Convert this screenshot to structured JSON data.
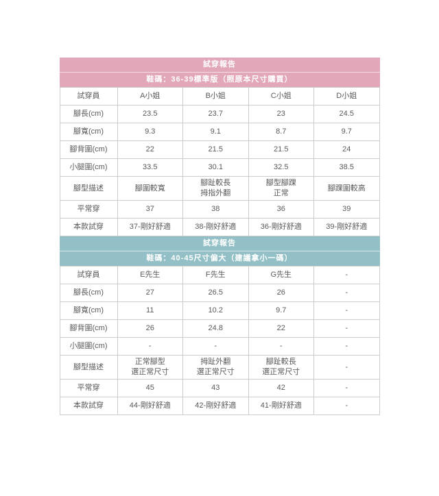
{
  "page": {
    "background": "#ffffff",
    "border_color": "#cccccc",
    "body_text_color": "#595959"
  },
  "chart_data": [
    {
      "type": "table",
      "title": "試穿報告",
      "subtitle": "鞋碼：36-39標準版（照原本尺寸購買）",
      "theme_color": "#e2a7b8",
      "header_text_color": "#ffffff",
      "columns": [
        "試穿員",
        "A小姐",
        "B小姐",
        "C小姐",
        "D小姐"
      ],
      "rows": [
        [
          "腳長(cm)",
          "23.5",
          "23.7",
          "23",
          "24.5"
        ],
        [
          "腳寬(cm)",
          "9.3",
          "9.1",
          "8.7",
          "9.7"
        ],
        [
          "腳背圍(cm)",
          "22",
          "21.5",
          "21.5",
          "24"
        ],
        [
          "小腿圍(cm)",
          "33.5",
          "30.1",
          "32.5",
          "38.5"
        ],
        [
          "腳型描述",
          "腳圍較寬",
          "腳趾較長\n拇指外翻",
          "腳型腳踝\n正常",
          "腳踝圍較高"
        ],
        [
          "平常穿",
          "37",
          "38",
          "36",
          "39"
        ],
        [
          "本款試穿",
          "37-剛好舒適",
          "38-剛好舒適",
          "36-剛好舒適",
          "39-剛好舒適"
        ]
      ]
    },
    {
      "type": "table",
      "title": "試穿報告",
      "subtitle": "鞋碼：40-45尺寸偏大（建議拿小一碼）",
      "theme_color": "#92c0c6",
      "header_text_color": "#ffffff",
      "columns": [
        "試穿員",
        "E先生",
        "F先生",
        "G先生",
        "-"
      ],
      "rows": [
        [
          "腳長(cm)",
          "27",
          "26.5",
          "26",
          "-"
        ],
        [
          "腳寬(cm)",
          "11",
          "10.2",
          "9.7",
          "-"
        ],
        [
          "腳背圍(cm)",
          "26",
          "24.8",
          "22",
          "-"
        ],
        [
          "小腿圍(cm)",
          "-",
          "-",
          "-",
          "-"
        ],
        [
          "腳型描述",
          "正常腳型\n選正常尺寸",
          "拇趾外翻\n選正常尺寸",
          "腳趾較長\n選正常尺寸",
          "-"
        ],
        [
          "平常穿",
          "45",
          "43",
          "42",
          "-"
        ],
        [
          "本款試穿",
          "44-剛好舒適",
          "42-剛好舒適",
          "41-剛好舒適",
          "-"
        ]
      ]
    }
  ]
}
